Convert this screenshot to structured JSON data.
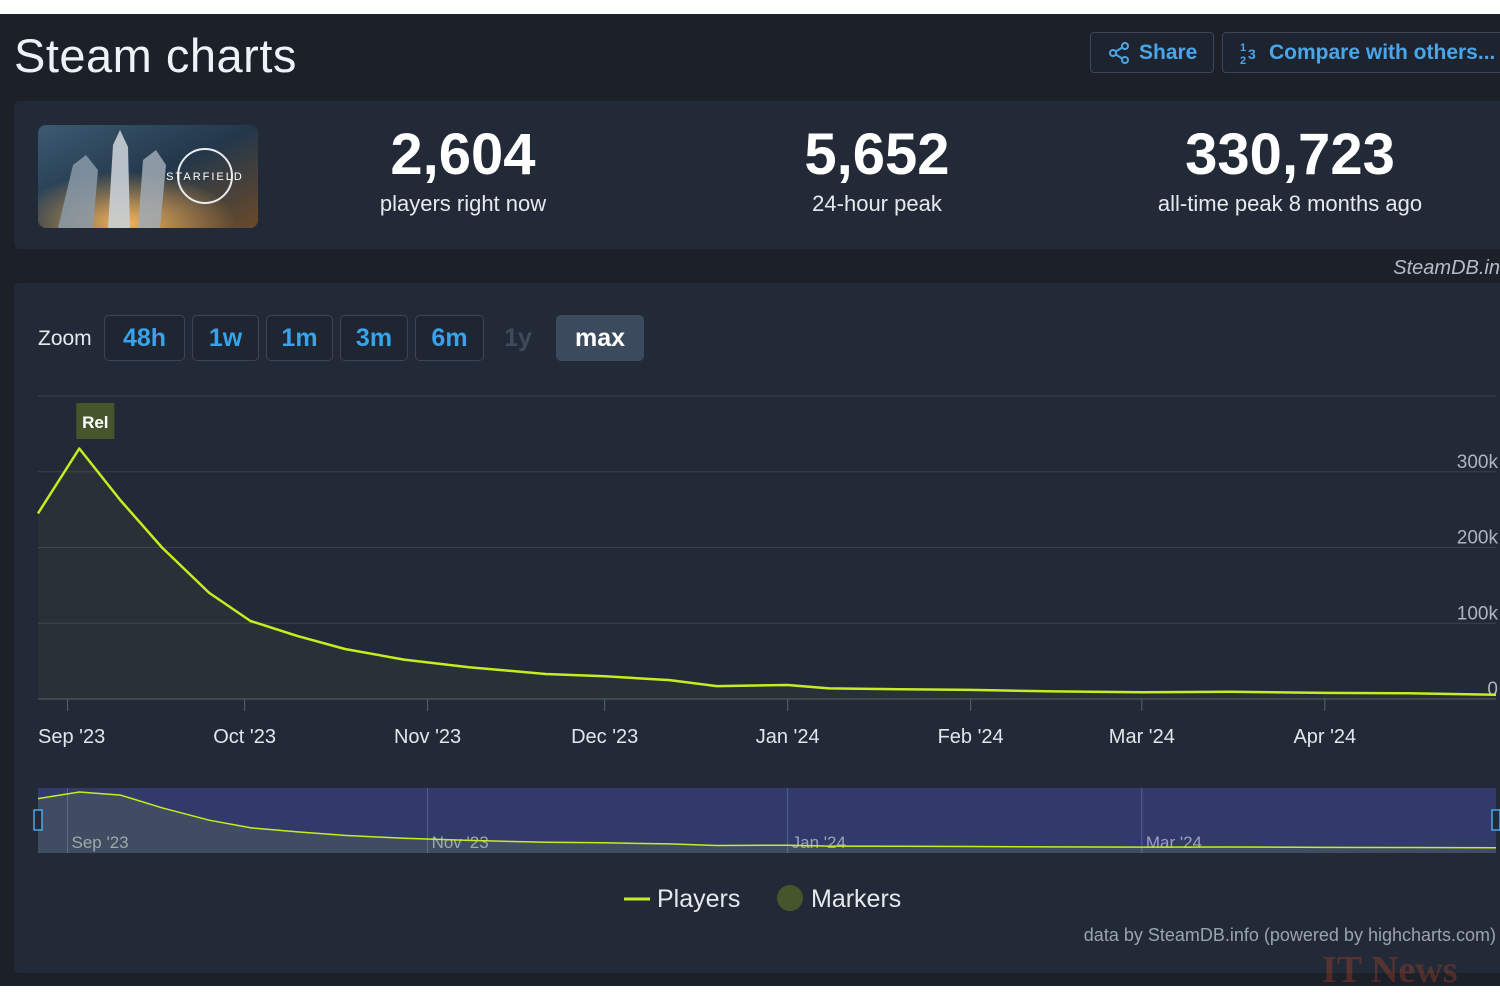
{
  "header": {
    "title": "Steam charts",
    "share_label": "Share",
    "compare_label": "Compare with others..."
  },
  "game": {
    "image_icon": "starfield-cover-art-icon",
    "image_text": "STARFIELD"
  },
  "stats": {
    "now_value": "2,604",
    "now_label": "players right now",
    "peak24_value": "5,652",
    "peak24_label": "24-hour peak",
    "alltime_value": "330,723",
    "alltime_label": "all-time peak 8 months ago"
  },
  "source_label": "SteamDB.in",
  "zoom": {
    "label": "Zoom",
    "options": [
      "48h",
      "1w",
      "1m",
      "3m",
      "6m",
      "1y",
      "max"
    ],
    "disabled": "1y",
    "selected": "max"
  },
  "chart_data": {
    "type": "line",
    "x_axis": {
      "type": "datetime",
      "range": [
        "2023-08-27",
        "2024-04-30"
      ],
      "tick_labels": [
        "Sep '23",
        "Oct '23",
        "Nov '23",
        "Dec '23",
        "Jan '24",
        "Feb '24",
        "Mar '24",
        "Apr '24"
      ],
      "ticks": [
        "2023-09-01",
        "2023-10-01",
        "2023-11-01",
        "2023-12-01",
        "2024-01-01",
        "2024-02-01",
        "2024-03-01",
        "2024-04-01"
      ]
    },
    "y_axis": {
      "range": [
        0,
        400000
      ],
      "ticks": [
        0,
        100000,
        200000,
        300000
      ],
      "tick_labels": [
        "0",
        "100k",
        "200k",
        "300k"
      ],
      "side": "right",
      "grid": true
    },
    "series": [
      {
        "name": "Players",
        "color": "#c8ec22",
        "x": [
          "2023-08-27",
          "2023-09-03",
          "2023-09-10",
          "2023-09-17",
          "2023-09-25",
          "2023-10-02",
          "2023-10-10",
          "2023-10-18",
          "2023-10-28",
          "2023-11-08",
          "2023-11-21",
          "2023-12-01",
          "2023-12-12",
          "2023-12-20",
          "2024-01-01",
          "2024-01-08",
          "2024-01-20",
          "2024-02-01",
          "2024-02-15",
          "2024-03-01",
          "2024-03-16",
          "2024-04-01",
          "2024-04-15",
          "2024-04-30"
        ],
        "y": [
          245000,
          330723,
          262000,
          200000,
          140000,
          103000,
          83000,
          66000,
          52000,
          42000,
          33000,
          30000,
          25000,
          17000,
          18500,
          14000,
          13000,
          12000,
          10000,
          9000,
          9500,
          8000,
          7500,
          5652
        ]
      }
    ],
    "markers": [
      {
        "date": "2023-09-03",
        "label": "Rel"
      }
    ],
    "navigator": {
      "tick_labels": [
        "Sep '23",
        "Nov '23",
        "Jan '24",
        "Mar '24"
      ],
      "ticks": [
        "2023-09-01",
        "2023-11-01",
        "2024-01-01",
        "2024-03-01"
      ]
    },
    "legend": {
      "position": "bottom-center",
      "items": [
        {
          "name": "Players",
          "color": "#c8ec22",
          "symbol": "line"
        },
        {
          "name": "Markers",
          "color": "#46552c",
          "symbol": "circle"
        }
      ]
    }
  },
  "credits": "data by SteamDB.info (powered by highcharts.com)",
  "watermark": "IT News"
}
